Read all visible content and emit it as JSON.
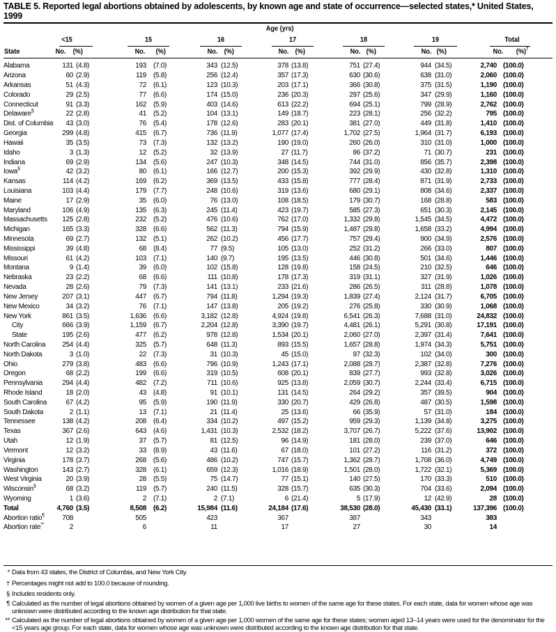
{
  "title": "TABLE 5. Reported legal abortions obtained by adolescents, by known age and state of occurrence—selected states,* United States, 1999",
  "header": {
    "age_label": "Age (yrs)",
    "groups": [
      "<15",
      "15",
      "16",
      "17",
      "18",
      "19",
      "Total"
    ],
    "state_label": "State",
    "no_label": "No.",
    "pct_label": "(%)",
    "total_pct_mark": "†"
  },
  "rows": [
    {
      "state": "Alabama",
      "cells": [
        "131",
        "(4.8)",
        "193",
        "(7.0)",
        "343",
        "(12.5)",
        "378",
        "(13.8)",
        "751",
        "(27.4)",
        "944",
        "(34.5)",
        "2,740",
        "(100.0)"
      ]
    },
    {
      "state": "Arizona",
      "cells": [
        "60",
        "(2.9)",
        "119",
        "(5.8)",
        "256",
        "(12.4)",
        "357",
        "(17.3)",
        "630",
        "(30.6)",
        "638",
        "(31.0)",
        "2,060",
        "(100.0)"
      ]
    },
    {
      "state": "Arkansas",
      "cells": [
        "51",
        "(4.3)",
        "72",
        "(6.1)",
        "123",
        "(10.3)",
        "203",
        "(17.1)",
        "366",
        "(30.8)",
        "375",
        "(31.5)",
        "1,190",
        "(100.0)"
      ]
    },
    {
      "state": "Colorado",
      "cells": [
        "29",
        "(2.5)",
        "77",
        "(6.6)",
        "174",
        "(15.0)",
        "236",
        "(20.3)",
        "297",
        "(25.6)",
        "347",
        "(29.9)",
        "1,160",
        "(100.0)"
      ]
    },
    {
      "state": "Connecticut",
      "cells": [
        "91",
        "(3.3)",
        "162",
        "(5.9)",
        "403",
        "(14.6)",
        "613",
        "(22.2)",
        "694",
        "(25.1)",
        "799",
        "(28.9)",
        "2,762",
        "(100.0)"
      ]
    },
    {
      "state": "Delaware",
      "mark": "§",
      "cells": [
        "22",
        "(2.8)",
        "41",
        "(5.2)",
        "104",
        "(13.1)",
        "149",
        "(18.7)",
        "223",
        "(28.1)",
        "256",
        "(32.2)",
        "795",
        "(100.0)"
      ]
    },
    {
      "state": "Dist. of Columbia",
      "cells": [
        "43",
        "(3.0)",
        "76",
        "(5.4)",
        "178",
        "(12.6)",
        "283",
        "(20.1)",
        "381",
        "(27.0)",
        "449",
        "(31.8)",
        "1,410",
        "(100.0)"
      ]
    },
    {
      "state": "Georgia",
      "cells": [
        "299",
        "(4.8)",
        "415",
        "(6.7)",
        "736",
        "(11.9)",
        "1,077",
        "(17.4)",
        "1,702",
        "(27.5)",
        "1,964",
        "(31.7)",
        "6,193",
        "(100.0)"
      ]
    },
    {
      "state": "Hawaii",
      "cells": [
        "35",
        "(3.5)",
        "73",
        "(7.3)",
        "132",
        "(13.2)",
        "190",
        "(19.0)",
        "260",
        "(26.0)",
        "310",
        "(31.0)",
        "1,000",
        "(100.0)"
      ]
    },
    {
      "state": "Idaho",
      "cells": [
        "3",
        "(1.3)",
        "12",
        "(5.2)",
        "32",
        "(13.9)",
        "27",
        "(11.7)",
        "86",
        "(37.2)",
        "71",
        "(30.7)",
        "231",
        "(100.0)"
      ]
    },
    {
      "state": "Indiana",
      "cells": [
        "69",
        "(2.9)",
        "134",
        "(5.6)",
        "247",
        "(10.3)",
        "348",
        "(14.5)",
        "744",
        "(31.0)",
        "856",
        "(35.7)",
        "2,398",
        "(100.0)"
      ]
    },
    {
      "state": "Iowa",
      "mark": "§",
      "cells": [
        "42",
        "(3.2)",
        "80",
        "(6.1)",
        "166",
        "(12.7)",
        "200",
        "(15.3)",
        "392",
        "(29.9)",
        "430",
        "(32.8)",
        "1,310",
        "(100.0)"
      ]
    },
    {
      "state": "Kansas",
      "cells": [
        "114",
        "(4.2)",
        "169",
        "(6.2)",
        "369",
        "(13.5)",
        "433",
        "(15.8)",
        "777",
        "(28.4)",
        "871",
        "(31.9)",
        "2,733",
        "(100.0)"
      ]
    },
    {
      "state": "Louisiana",
      "cells": [
        "103",
        "(4.4)",
        "179",
        "(7.7)",
        "248",
        "(10.6)",
        "319",
        "(13.6)",
        "680",
        "(29.1)",
        "808",
        "(34.6)",
        "2,337",
        "(100.0)"
      ]
    },
    {
      "state": "Maine",
      "cells": [
        "17",
        "(2.9)",
        "35",
        "(6.0)",
        "76",
        "(13.0)",
        "108",
        "(18.5)",
        "179",
        "(30.7)",
        "168",
        "(28.8)",
        "583",
        "(100.0)"
      ]
    },
    {
      "state": "Maryland",
      "cells": [
        "106",
        "(4.9)",
        "135",
        "(6.3)",
        "245",
        "(11.4)",
        "423",
        "(19.7)",
        "585",
        "(27.3)",
        "651",
        "(30.3)",
        "2,145",
        "(100.0)"
      ]
    },
    {
      "state": "Massachusetts",
      "cells": [
        "125",
        "(2.8)",
        "232",
        "(5.2)",
        "476",
        "(10.6)",
        "762",
        "(17.0)",
        "1,332",
        "(29.8)",
        "1,545",
        "(34.5)",
        "4,472",
        "(100.0)"
      ]
    },
    {
      "state": "Michigan",
      "cells": [
        "165",
        "(3.3)",
        "328",
        "(6.6)",
        "562",
        "(11.3)",
        "794",
        "(15.9)",
        "1,487",
        "(29.8)",
        "1,658",
        "(33.2)",
        "4,994",
        "(100.0)"
      ]
    },
    {
      "state": "Minnesota",
      "cells": [
        "69",
        "(2.7)",
        "132",
        "(5.1)",
        "262",
        "(10.2)",
        "456",
        "(17.7)",
        "757",
        "(29.4)",
        "900",
        "(34.9)",
        "2,576",
        "(100.0)"
      ]
    },
    {
      "state": "Mississippi",
      "cells": [
        "39",
        "(4.8)",
        "68",
        "(8.4)",
        "77",
        "(9.5)",
        "105",
        "(13.0)",
        "252",
        "(31.2)",
        "266",
        "(33.0)",
        "807",
        "(100.0)"
      ]
    },
    {
      "state": "Missouri",
      "cells": [
        "61",
        "(4.2)",
        "103",
        "(7.1)",
        "140",
        "(9.7)",
        "195",
        "(13.5)",
        "446",
        "(30.8)",
        "501",
        "(34.6)",
        "1,446",
        "(100.0)"
      ]
    },
    {
      "state": "Montana",
      "cells": [
        "9",
        "(1.4)",
        "39",
        "(6.0)",
        "102",
        "(15.8)",
        "128",
        "(19.8)",
        "158",
        "(24.5)",
        "210",
        "(32.5)",
        "646",
        "(100.0)"
      ]
    },
    {
      "state": "Nebraska",
      "cells": [
        "23",
        "(2.2)",
        "68",
        "(6.6)",
        "111",
        "(10.8)",
        "178",
        "(17.3)",
        "319",
        "(31.1)",
        "327",
        "(31.9)",
        "1,026",
        "(100.0)"
      ]
    },
    {
      "state": "Nevada",
      "cells": [
        "28",
        "(2.6)",
        "79",
        "(7.3)",
        "141",
        "(13.1)",
        "233",
        "(21.6)",
        "286",
        "(26.5)",
        "311",
        "(28.8)",
        "1,078",
        "(100.0)"
      ]
    },
    {
      "state": "New Jersey",
      "cells": [
        "207",
        "(3.1)",
        "447",
        "(6.7)",
        "794",
        "(11.8)",
        "1,294",
        "(19.3)",
        "1,839",
        "(27.4)",
        "2,124",
        "(31.7)",
        "6,705",
        "(100.0)"
      ]
    },
    {
      "state": "New Mexico",
      "cells": [
        "34",
        "(3.2)",
        "76",
        "(7.1)",
        "147",
        "(13.8)",
        "205",
        "(19.2)",
        "276",
        "(25.8)",
        "330",
        "(30.9)",
        "1,068",
        "(100.0)"
      ]
    },
    {
      "state": "New York",
      "cells": [
        "861",
        "(3.5)",
        "1,636",
        "(6.6)",
        "3,182",
        "(12.8)",
        "4,924",
        "(19.8)",
        "6,541",
        "(26.3)",
        "7,688",
        "(31.0)",
        "24,832",
        "(100.0)"
      ]
    },
    {
      "state": "City",
      "indent": true,
      "cells": [
        "666",
        "(3.9)",
        "1,159",
        "(6.7)",
        "2,204",
        "(12.8)",
        "3,390",
        "(19.7)",
        "4,481",
        "(26.1)",
        "5,291",
        "(30.8)",
        "17,191",
        "(100.0)"
      ]
    },
    {
      "state": "State",
      "indent": true,
      "cells": [
        "195",
        "(2.6)",
        "477",
        "(6.2)",
        "978",
        "(12.8)",
        "1,534",
        "(20.1)",
        "2,060",
        "(27.0)",
        "2,397",
        "(31.4)",
        "7,641",
        "(100.0)"
      ]
    },
    {
      "state": "North Carolina",
      "cells": [
        "254",
        "(4.4)",
        "325",
        "(5.7)",
        "648",
        "(11.3)",
        "893",
        "(15.5)",
        "1,657",
        "(28.8)",
        "1,974",
        "(34.3)",
        "5,751",
        "(100.0)"
      ]
    },
    {
      "state": "North Dakota",
      "cells": [
        "3",
        "(1.0)",
        "22",
        "(7.3)",
        "31",
        "(10.3)",
        "45",
        "(15.0)",
        "97",
        "(32.3)",
        "102",
        "(34.0)",
        "300",
        "(100.0)"
      ]
    },
    {
      "state": "Ohio",
      "cells": [
        "279",
        "(3.8)",
        "483",
        "(6.6)",
        "796",
        "(10.9)",
        "1,243",
        "(17.1)",
        "2,088",
        "(28.7)",
        "2,387",
        "(32.8)",
        "7,276",
        "(100.0)"
      ]
    },
    {
      "state": "Oregon",
      "cells": [
        "68",
        "(2.2)",
        "199",
        "(6.6)",
        "319",
        "(10.5)",
        "608",
        "(20.1)",
        "839",
        "(27.7)",
        "993",
        "(32.8)",
        "3,026",
        "(100.0)"
      ]
    },
    {
      "state": "Pennsylvania",
      "cells": [
        "294",
        "(4.4)",
        "482",
        "(7.2)",
        "711",
        "(10.6)",
        "925",
        "(13.8)",
        "2,059",
        "(30.7)",
        "2,244",
        "(33.4)",
        "6,715",
        "(100.0)"
      ]
    },
    {
      "state": "Rhode Island",
      "cells": [
        "18",
        "(2.0)",
        "43",
        "(4.8)",
        "91",
        "(10.1)",
        "131",
        "(14.5)",
        "264",
        "(29.2)",
        "357",
        "(39.5)",
        "904",
        "(100.0)"
      ]
    },
    {
      "state": "South Carolina",
      "cells": [
        "67",
        "(4.2)",
        "95",
        "(5.9)",
        "190",
        "(11.9)",
        "330",
        "(20.7)",
        "429",
        "(26.8)",
        "487",
        "(30.5)",
        "1,598",
        "(100.0)"
      ]
    },
    {
      "state": "South Dakota",
      "cells": [
        "2",
        "(1.1)",
        "13",
        "(7.1)",
        "21",
        "(11.4)",
        "25",
        "(13.6)",
        "66",
        "(35.9)",
        "57",
        "(31.0)",
        "184",
        "(100.0)"
      ]
    },
    {
      "state": "Tennessee",
      "cells": [
        "138",
        "(4.2)",
        "208",
        "(6.4)",
        "334",
        "(10.2)",
        "497",
        "(15.2)",
        "959",
        "(29.3)",
        "1,139",
        "(34.8)",
        "3,275",
        "(100.0)"
      ]
    },
    {
      "state": "Texas",
      "cells": [
        "367",
        "(2.6)",
        "643",
        "(4.6)",
        "1,431",
        "(10.3)",
        "2,532",
        "(18.2)",
        "3,707",
        "(26.7)",
        "5,222",
        "(37.6)",
        "13,902",
        "(100.0)"
      ]
    },
    {
      "state": "Utah",
      "cells": [
        "12",
        "(1.9)",
        "37",
        "(5.7)",
        "81",
        "(12.5)",
        "96",
        "(14.9)",
        "181",
        "(28.0)",
        "239",
        "(37.0)",
        "646",
        "(100.0)"
      ]
    },
    {
      "state": "Vermont",
      "cells": [
        "12",
        "(3.2)",
        "33",
        "(8.9)",
        "43",
        "(11.6)",
        "67",
        "(18.0)",
        "101",
        "(27.2)",
        "116",
        "(31.2)",
        "372",
        "(100.0)"
      ]
    },
    {
      "state": "Virginia",
      "cells": [
        "178",
        "(3.7)",
        "268",
        "(5.6)",
        "486",
        "(10.2)",
        "747",
        "(15.7)",
        "1,362",
        "(28.7)",
        "1,708",
        "(36.0)",
        "4,749",
        "(100.0)"
      ]
    },
    {
      "state": "Washington",
      "cells": [
        "143",
        "(2.7)",
        "328",
        "(6.1)",
        "659",
        "(12.3)",
        "1,016",
        "(18.9)",
        "1,501",
        "(28.0)",
        "1,722",
        "(32.1)",
        "5,369",
        "(100.0)"
      ]
    },
    {
      "state": "West Virginia",
      "cells": [
        "20",
        "(3.9)",
        "28",
        "(5.5)",
        "75",
        "(14.7)",
        "77",
        "(15.1)",
        "140",
        "(27.5)",
        "170",
        "(33.3)",
        "510",
        "(100.0)"
      ]
    },
    {
      "state": "Wisconsin",
      "mark": "§",
      "cells": [
        "68",
        "(3.2)",
        "119",
        "(5.7)",
        "240",
        "(11.5)",
        "328",
        "(15.7)",
        "635",
        "(30.3)",
        "704",
        "(33.6)",
        "2,094",
        "(100.0)"
      ]
    },
    {
      "state": "Wyoming",
      "cells": [
        "1",
        "(3.6)",
        "2",
        "(7.1)",
        "2",
        "(7.1)",
        "6",
        "(21.4)",
        "5",
        "(17.9)",
        "12",
        "(42.9)",
        "28",
        "(100.0)"
      ]
    },
    {
      "state": "Total",
      "total": true,
      "cells": [
        "4,760",
        "(3.5)",
        "8,508",
        "(6.2)",
        "15,984",
        "(11.6)",
        "24,184",
        "(17.6)",
        "38,530",
        "(28.0)",
        "45,430",
        "(33.1)",
        "137,396",
        "(100.0)"
      ]
    },
    {
      "state": "Abortion ratio",
      "mark": "¶",
      "cells": [
        "708",
        "",
        "505",
        "",
        "423",
        "",
        "367",
        "",
        "387",
        "",
        "343",
        "",
        "383",
        ""
      ]
    },
    {
      "state": "Abortion rate",
      "mark": "**",
      "cells": [
        "2",
        "",
        "6",
        "",
        "11",
        "",
        "17",
        "",
        "27",
        "",
        "30",
        "",
        "14",
        ""
      ]
    }
  ],
  "footnotes": [
    {
      "mark": "*",
      "text": "Data from 43 states, the District of Columbia, and New York City."
    },
    {
      "mark": "†",
      "text": "Percentages might not add to 100.0 because of rounding."
    },
    {
      "mark": "§",
      "text": "Includes residents only."
    },
    {
      "mark": "¶",
      "text": "Calculated as the number of legal abortions obtained by women of a given age per 1,000 live births to women of the same age for these states. For each state, data for women whose age was unknown were distributed according to the known age distribution for that state."
    },
    {
      "mark": "**",
      "text": "Calculated as the number of legal abortions obtained by women of a given age per 1,000 women of the same age for these states; women aged 13–14 years were used for the denominator for the <15 years age group. For each state, data for women whose age was unknown were distributed according to the known age distribution for that state."
    }
  ]
}
